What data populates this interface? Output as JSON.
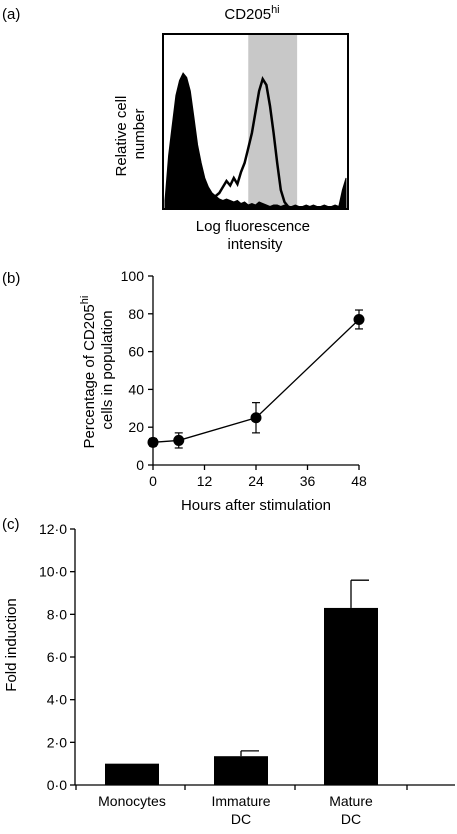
{
  "panels": {
    "a": {
      "label": "(a)",
      "title_main": "CD205",
      "title_sup": "hi",
      "ylabel_line1": "Relative cell",
      "ylabel_line2": "number",
      "xlabel_line1": "Log fluorescence",
      "xlabel_line2": "intensity"
    },
    "b": {
      "label": "(b)",
      "ylabel_line1_main": "Percentage of CD205",
      "ylabel_line1_sup": "hi",
      "ylabel_line2": "cells in population",
      "xlabel": "Hours after stimulation"
    },
    "c": {
      "label": "(c)",
      "ylabel": "Fold induction"
    }
  },
  "chart_data": [
    {
      "panel": "a",
      "type": "area",
      "title": "CD205hi",
      "xlabel": "Log fluorescence intensity",
      "ylabel": "Relative cell number",
      "x": [
        0,
        2,
        4,
        6,
        8,
        10,
        12,
        14,
        16,
        18,
        20,
        22,
        24,
        26,
        28,
        30,
        32,
        34,
        36,
        38,
        40,
        42,
        44,
        46,
        48,
        50,
        52,
        54,
        56,
        58,
        60,
        62,
        64,
        66,
        68,
        70,
        72,
        74,
        76,
        78,
        80,
        82,
        84,
        86,
        88,
        90,
        92,
        94,
        96,
        98,
        100
      ],
      "series": [
        {
          "values": [
            0.05,
            0.35,
            0.55,
            0.75,
            0.85,
            0.9,
            0.87,
            0.78,
            0.6,
            0.42,
            0.3,
            0.2,
            0.14,
            0.1,
            0.08,
            0.06,
            0.05,
            0.06,
            0.05,
            0.04,
            0.05,
            0.03,
            0.04,
            0.02,
            0.03,
            0.02,
            0.04,
            0.03,
            0.02,
            0.01,
            0.02,
            0.02,
            0.01,
            0.02,
            0.01,
            0.01,
            0.02,
            0.01,
            0.01,
            0.02,
            0.01,
            0.02,
            0.01,
            0.01,
            0.02,
            0.01,
            0.01,
            0.02,
            0.01,
            0.12,
            0.2
          ]
        },
        {
          "values": [
            0,
            0,
            0,
            0,
            0,
            0,
            0,
            0,
            0,
            0,
            0,
            0,
            0,
            0,
            0.08,
            0.1,
            0.14,
            0.18,
            0.15,
            0.2,
            0.16,
            0.24,
            0.3,
            0.4,
            0.5,
            0.64,
            0.78,
            0.86,
            0.82,
            0.68,
            0.5,
            0.3,
            0.12,
            0.04,
            0.01,
            0,
            0,
            0,
            0,
            0,
            0,
            0,
            0,
            0,
            0,
            0,
            0,
            0,
            0,
            0,
            0
          ]
        }
      ],
      "gate": [
        46,
        73
      ],
      "gate_color": "#c8c8c8"
    },
    {
      "panel": "b",
      "type": "line",
      "xlabel": "Hours after stimulation",
      "ylabel": "Percentage of CD205hi cells in population",
      "x": [
        0,
        6,
        24,
        48
      ],
      "series": [
        {
          "values": [
            12,
            13,
            25,
            77
          ],
          "error": [
            2,
            4,
            8,
            5
          ]
        }
      ],
      "xlim": [
        0,
        48
      ],
      "ylim": [
        0,
        100
      ],
      "xticks": [
        "0",
        "12",
        "24",
        "36",
        "48"
      ],
      "yticks": [
        "0",
        "20",
        "40",
        "60",
        "80",
        "100"
      ]
    },
    {
      "panel": "c",
      "type": "bar",
      "ylabel": "Fold induction",
      "categories": [
        {
          "line1": "Monocytes",
          "line2": ""
        },
        {
          "line1": "Immature",
          "line2": "DC"
        },
        {
          "line1": "Mature",
          "line2": "DC"
        }
      ],
      "values": [
        1.0,
        1.35,
        8.3
      ],
      "error": [
        0,
        0.25,
        1.3
      ],
      "ylim": [
        0,
        12
      ],
      "yticks": [
        "0·0",
        "2·0",
        "4·0",
        "6·0",
        "8·0",
        "10·0",
        "12·0"
      ]
    }
  ]
}
